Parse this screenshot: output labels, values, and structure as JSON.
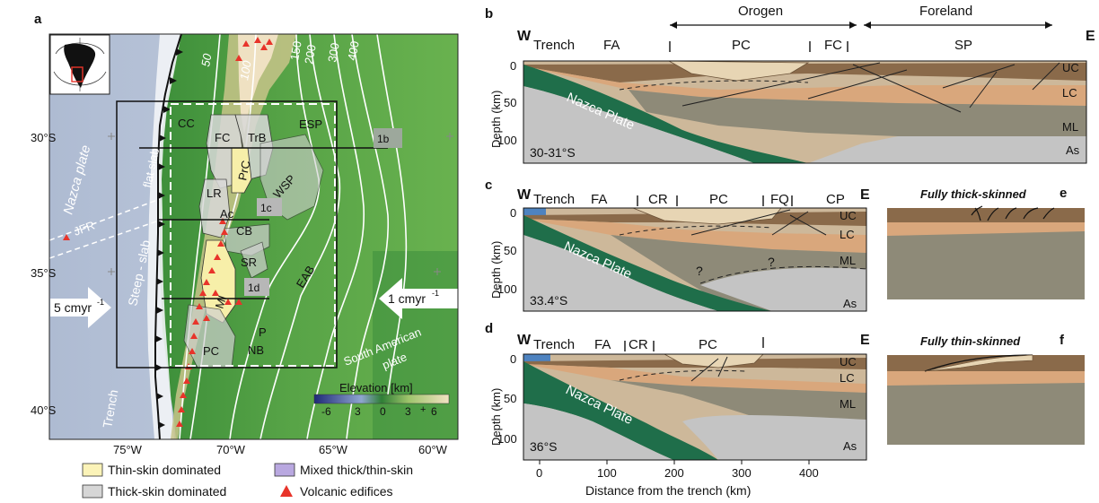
{
  "panels": {
    "a": "a",
    "b": "b",
    "c": "c",
    "d": "d",
    "e": "e",
    "f": "f"
  },
  "map": {
    "lat_labels": [
      "30°S",
      "35°S",
      "40°S"
    ],
    "lon_labels": [
      "75°W",
      "70°W",
      "65°W",
      "60°W"
    ],
    "contours": [
      "50",
      "100",
      "150",
      "200",
      "300",
      "400"
    ],
    "plates": {
      "nazca": "Nazca plate",
      "south_american": "South American",
      "south_american_2": "plate"
    },
    "jfr": "JFR",
    "flat_slab": "flat slab",
    "steep_slab": "Steep - slab",
    "trench": "Trench",
    "conv_left": "5 cmyr",
    "conv_right": "1 cmyr",
    "conv_sup": "-1",
    "regions": {
      "cc": "CC",
      "fc": "FC",
      "trb": "TrB",
      "esp": "ESP",
      "prc": "PrC",
      "lr": "LR",
      "wsp": "WSP",
      "ac": "Ac",
      "cb": "CB",
      "sr": "SR",
      "eab": "EAB",
      "mi": "MI",
      "p": "P",
      "pc": "PC",
      "nb": "NB"
    },
    "section_tags": {
      "b": "1b",
      "c": "1c",
      "d": "1d"
    },
    "elevation_title": "Elevation [km]",
    "elevation_ticks": [
      "-6",
      "3",
      "0",
      "3",
      "6"
    ],
    "plus": "+",
    "legend": {
      "thin": "Thin-skin dominated",
      "mixed": "Mixed thick/thin-skin",
      "thick": "Thick-skin dominated",
      "volcanic": "Volcanic edifices"
    },
    "colors": {
      "thin": "#fbf3b8",
      "mixed": "#b9a8e0",
      "thick": "#d6d6d6",
      "volcanic": "#e8342a"
    }
  },
  "sections": {
    "orogen": "Orogen",
    "foreland": "Foreland",
    "W": "W",
    "E": "E",
    "trench": "Trench",
    "b_tags": [
      "FA",
      "PC",
      "FC",
      "SP"
    ],
    "c_tags": [
      "FA",
      "CR",
      "PC",
      "FQ",
      "CP"
    ],
    "d_tags": [
      "FA",
      "CR",
      "PC"
    ],
    "layers": {
      "uc": "UC",
      "lc": "LC",
      "ml": "ML",
      "as": "As"
    },
    "nazca_plate": "Nazca Plate",
    "lat_b": "30-31°S",
    "lat_c": "33.4°S",
    "lat_d": "36°S",
    "q": "?",
    "ylabel": "Depth (km)",
    "yticks": [
      "0",
      "50",
      "100"
    ],
    "xticks": [
      "0",
      "100",
      "200",
      "300",
      "400"
    ],
    "xlabel": "Distance from the trench (km)",
    "e_title": "Fully thick-skinned",
    "f_title": "Fully thin-skinned"
  }
}
